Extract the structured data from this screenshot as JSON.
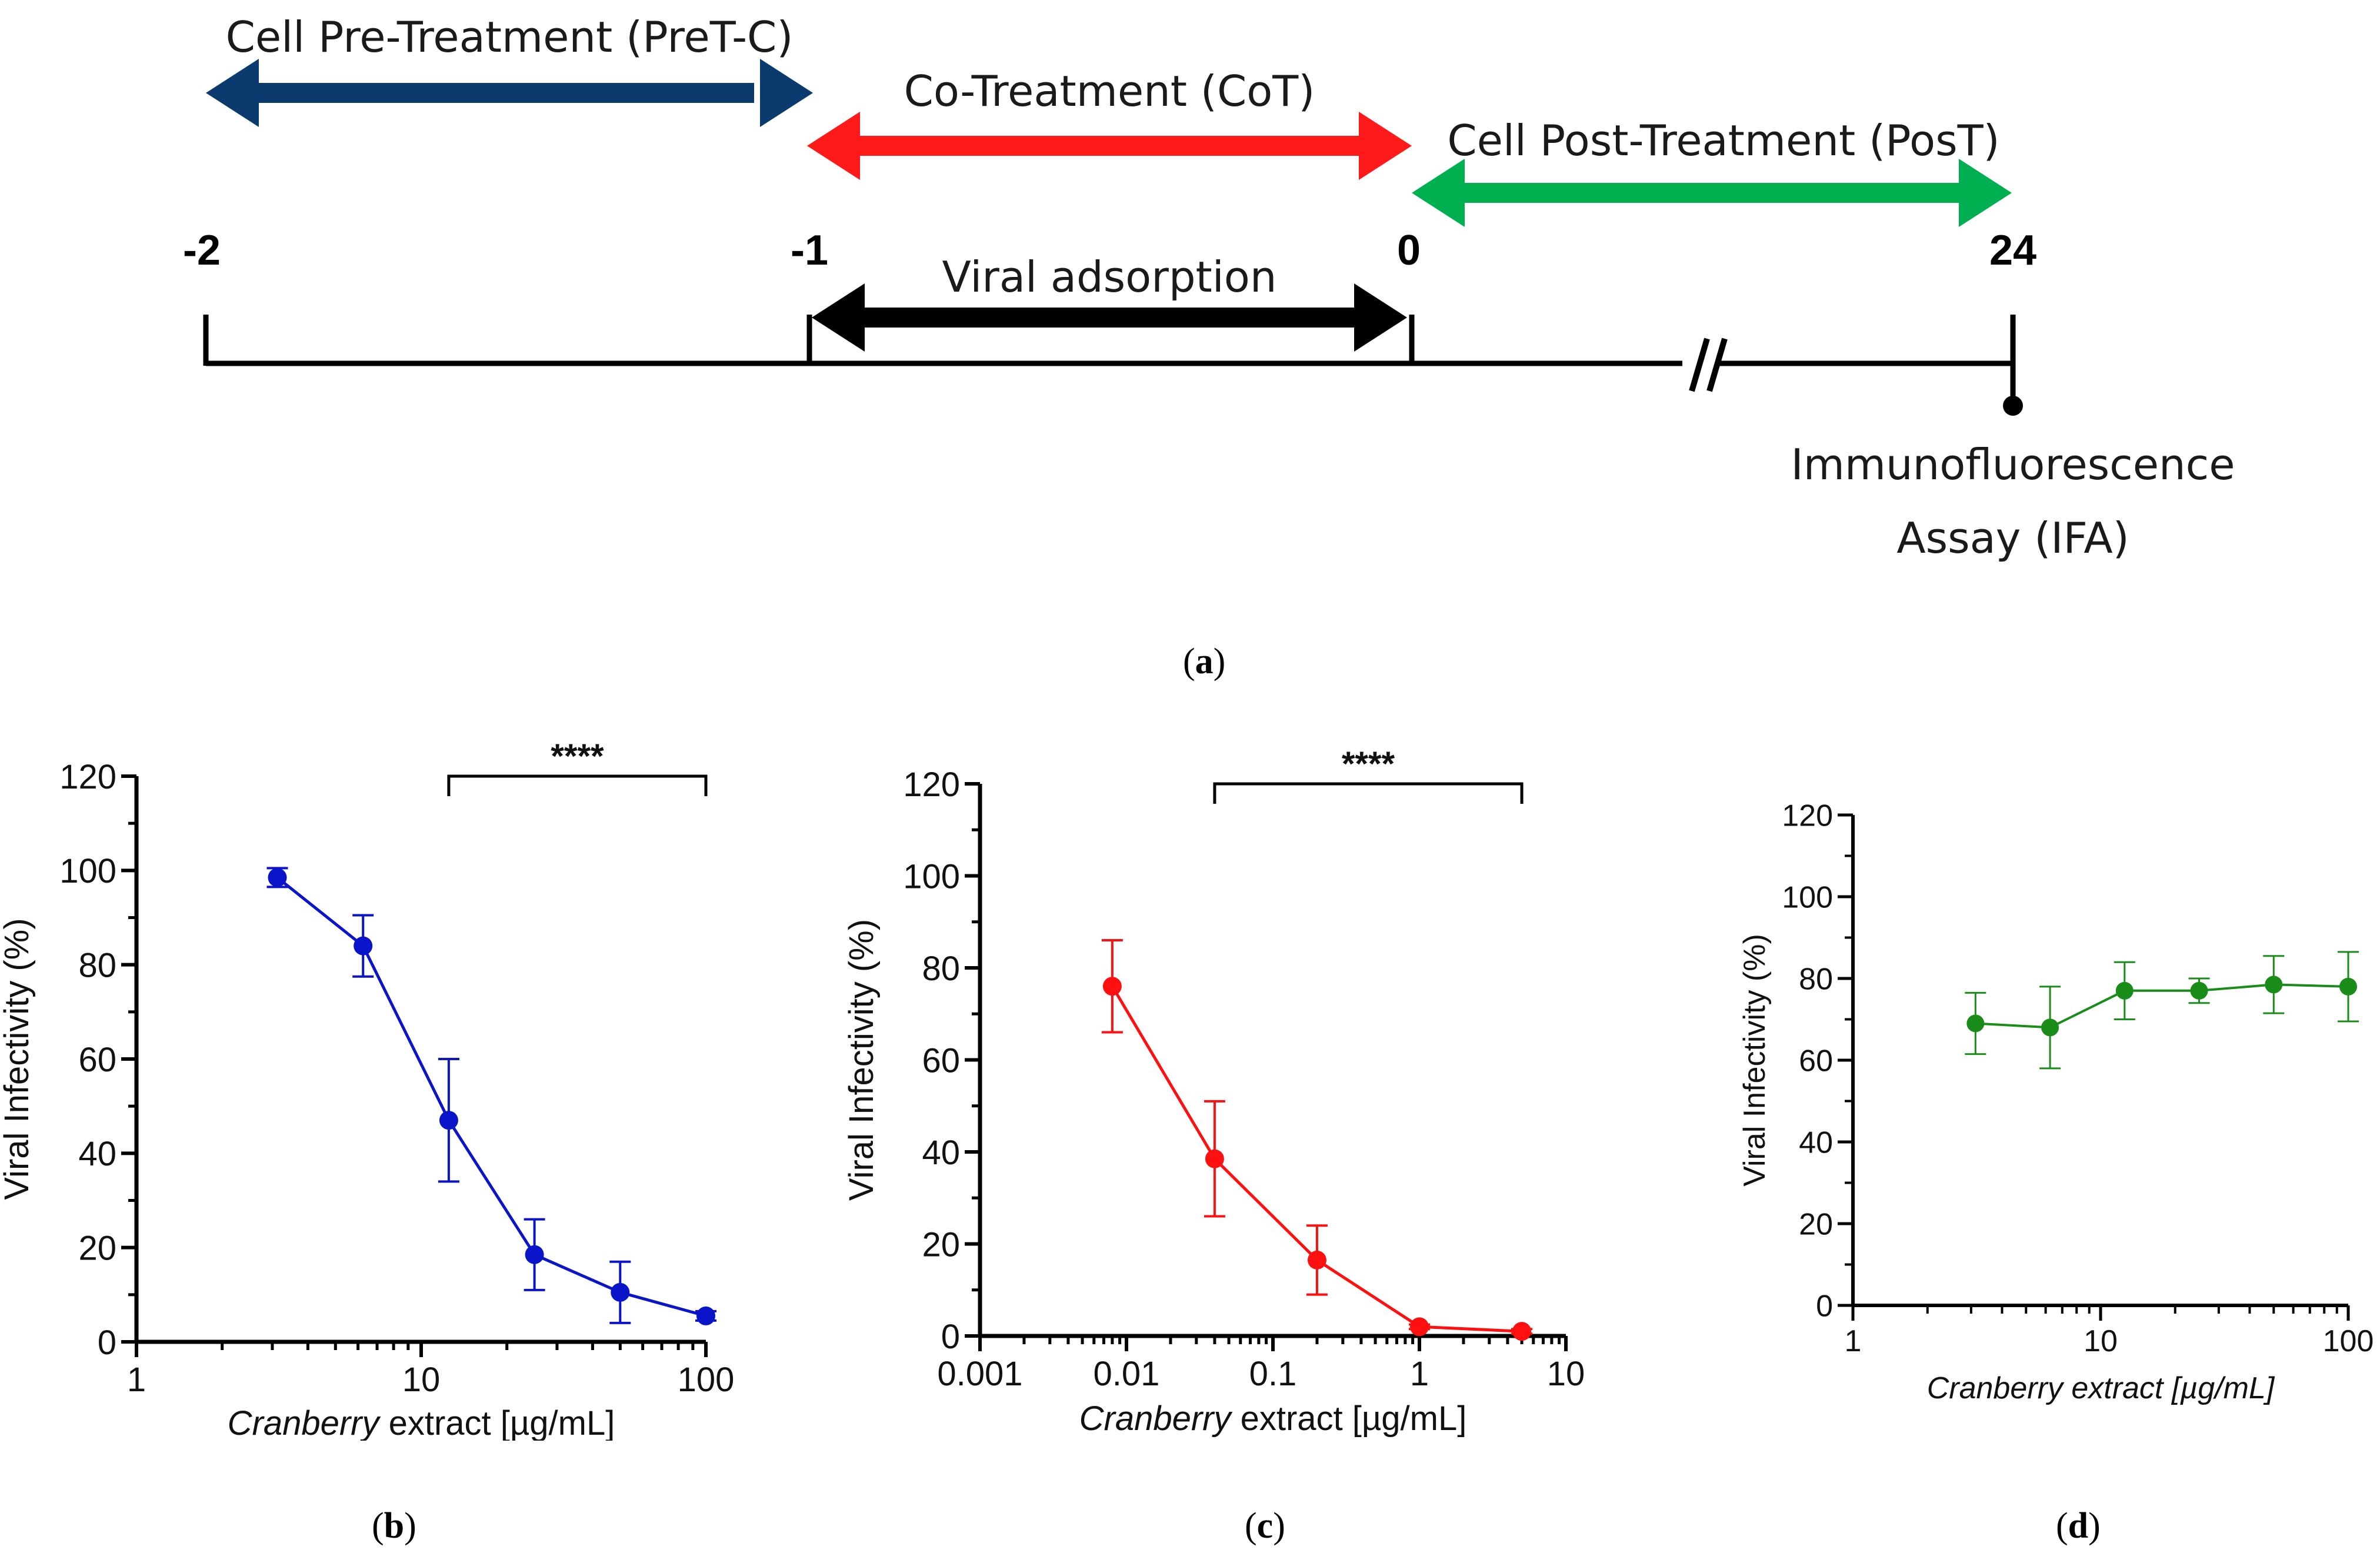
{
  "timeline": {
    "pretreatment_label": "Cell Pre-Treatment (PreT-C)",
    "cotreatment_label": "Co-Treatment (CoT)",
    "posttreatment_label": "Cell Post-Treatment (PosT)",
    "adsorption_label": "Viral adsorption",
    "assay_line1": "Immunofluorescence",
    "assay_line2": "Assay (IFA)",
    "ticks": [
      "-2",
      "-1",
      "0",
      "24"
    ],
    "colors": {
      "pretreatment": "#0b3a6e",
      "cotreatment": "#ff1a1a",
      "posttreatment": "#00b050",
      "adsorption": "#000000"
    }
  },
  "panel_labels": {
    "a": "a",
    "b": "b",
    "c": "c",
    "d": "d"
  },
  "chart_data": [
    {
      "id": "b",
      "type": "line",
      "xscale": "log",
      "xlim": [
        1,
        100
      ],
      "xticks": [
        "1",
        "10",
        "100"
      ],
      "ylim": [
        0,
        120
      ],
      "yticks": [
        "0",
        "20",
        "40",
        "60",
        "80",
        "100",
        "120"
      ],
      "xlabel_italic": "Cranberry",
      "xlabel_rest": " extract [µg/mL]",
      "ylabel": "Viral Infectivity (%)",
      "color": "#0a14c8",
      "significance": {
        "label": "****",
        "x_from": 12.5,
        "x_to": 100,
        "y": 120
      },
      "series": [
        {
          "name": "PreT-C",
          "x": [
            3.125,
            6.25,
            12.5,
            25,
            50,
            100
          ],
          "y": [
            98.5,
            84,
            47,
            18.5,
            10.5,
            5.5
          ],
          "err": [
            2,
            6.5,
            13,
            7.5,
            6.5,
            1
          ]
        }
      ]
    },
    {
      "id": "c",
      "type": "line",
      "xscale": "log",
      "xlim": [
        0.001,
        10
      ],
      "xticks": [
        "0.001",
        "0.01",
        "0.1",
        "1",
        "10"
      ],
      "ylim": [
        0,
        120
      ],
      "yticks": [
        "0",
        "20",
        "40",
        "60",
        "80",
        "100",
        "120"
      ],
      "xlabel_italic": "Cranberry",
      "xlabel_rest": " extract [µg/mL]",
      "ylabel": "Viral Infectivity (%)",
      "color": "#ff1010",
      "significance": {
        "label": "****",
        "x_from": 0.04,
        "x_to": 5,
        "y": 120
      },
      "series": [
        {
          "name": "CoT",
          "x": [
            0.008,
            0.04,
            0.2,
            1,
            5
          ],
          "y": [
            76,
            38.5,
            16.5,
            2,
            1
          ],
          "err": [
            10,
            12.5,
            7.5,
            0.5,
            0.5
          ]
        }
      ]
    },
    {
      "id": "d",
      "type": "line",
      "xscale": "log",
      "xlim": [
        1,
        100
      ],
      "xticks": [
        "1",
        "10",
        "100"
      ],
      "ylim": [
        0,
        120
      ],
      "yticks": [
        "0",
        "20",
        "40",
        "60",
        "80",
        "100",
        "120"
      ],
      "xlabel_italic": "Cranberry extract [µg/mL]",
      "xlabel_rest": "",
      "ylabel": "Viral Infectivity (%)",
      "color": "#1a8c1a",
      "significance": null,
      "series": [
        {
          "name": "PosT",
          "x": [
            3.125,
            6.25,
            12.5,
            25,
            50,
            100
          ],
          "y": [
            69,
            68,
            77,
            77,
            78.5,
            78
          ],
          "err": [
            7.5,
            10,
            7,
            3,
            7,
            8.5
          ]
        }
      ]
    }
  ]
}
